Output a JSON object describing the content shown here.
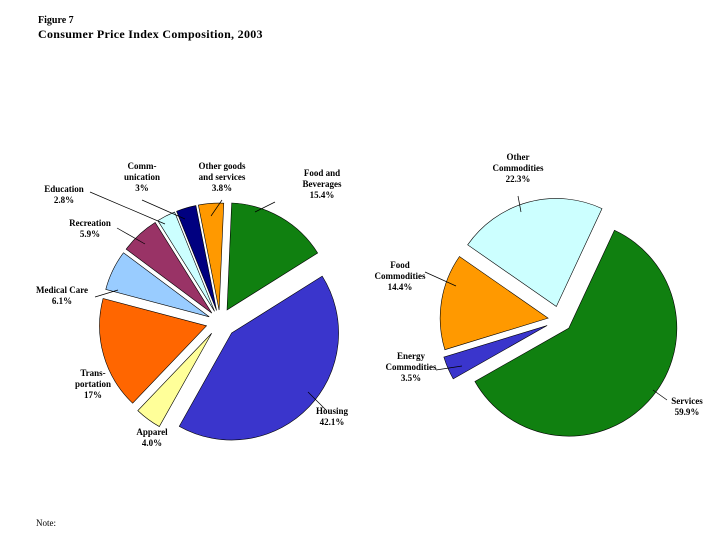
{
  "figure": {
    "label": "Figure 7",
    "title": "Consumer Price Index Composition, 2003",
    "note": "Note:"
  },
  "chart_data": [
    {
      "type": "pie",
      "title": "",
      "slices": [
        {
          "label_lines": [
            "Food and",
            "Beverages"
          ],
          "value_text": "15.4%",
          "value": 15.4,
          "color": "#108010"
        },
        {
          "label_lines": [
            "Housing"
          ],
          "value_text": "42.1%",
          "value": 42.1,
          "color": "#3a35cc"
        },
        {
          "label_lines": [
            "Apparel"
          ],
          "value_text": "4.0%",
          "value": 4.0,
          "color": "#ffff99"
        },
        {
          "label_lines": [
            "Trans-",
            "portation"
          ],
          "value_text": "17%",
          "value": 17,
          "color": "#ff6600"
        },
        {
          "label_lines": [
            "Medical Care"
          ],
          "value_text": "6.1%",
          "value": 6.1,
          "color": "#99ccff"
        },
        {
          "label_lines": [
            "Recreation"
          ],
          "value_text": "5.9%",
          "value": 5.9,
          "color": "#993366"
        },
        {
          "label_lines": [
            "Education"
          ],
          "value_text": "2.8%",
          "value": 2.8,
          "color": "#ccffff"
        },
        {
          "label_lines": [
            "Comm-",
            "unication"
          ],
          "value_text": "3%",
          "value": 3,
          "color": "#000080"
        },
        {
          "label_lines": [
            "Other goods",
            "and services"
          ],
          "value_text": "3.8%",
          "value": 3.8,
          "color": "#ff9900"
        }
      ]
    },
    {
      "type": "pie",
      "title": "",
      "slices": [
        {
          "label_lines": [
            "Services"
          ],
          "value_text": "59.9%",
          "value": 59.9,
          "color": "#108010"
        },
        {
          "label_lines": [
            "Energy",
            "Commodities"
          ],
          "value_text": "3.5%",
          "value": 3.5,
          "color": "#3a35cc"
        },
        {
          "label_lines": [
            "Food",
            "Commodities"
          ],
          "value_text": "14.4%",
          "value": 14.4,
          "color": "#ff9900"
        },
        {
          "label_lines": [
            "Other",
            "Commodities"
          ],
          "value_text": "22.3%",
          "value": 22.3,
          "color": "#ccffff"
        }
      ]
    }
  ]
}
